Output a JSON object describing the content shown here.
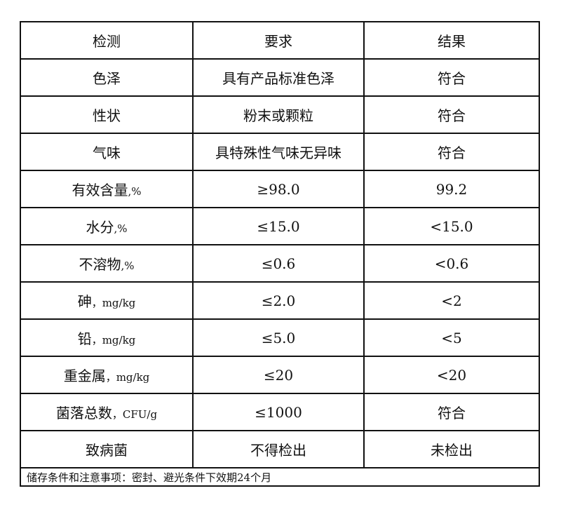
{
  "header": [
    "检测",
    "要求",
    "结果"
  ],
  "rows": [
    {
      "item": "色泽",
      "unit": "",
      "requirement": "具有产品标准色泽",
      "result": "符合"
    },
    {
      "item": "性状",
      "unit": "",
      "requirement": "粉末或颗粒",
      "result": "符合"
    },
    {
      "item": "气味",
      "unit": "",
      "requirement": "具特殊性气味无异味",
      "result": "符合"
    },
    {
      "item": "有效含量",
      "unit": ",%",
      "requirement": "≥98.0",
      "result": "99.2"
    },
    {
      "item": "水分",
      "unit": ",%",
      "requirement": "≤15.0",
      "result": "<15.0"
    },
    {
      "item": "不溶物",
      "unit": ",%",
      "requirement": "≤0.6",
      "result": "<0.6"
    },
    {
      "item": "砷",
      "unit": "，mg/kg",
      "requirement": "≤2.0",
      "result": "<2"
    },
    {
      "item": "铅",
      "unit": "，mg/kg",
      "requirement": "≤5.0",
      "result": "<5"
    },
    {
      "item": "重金属",
      "unit": "，mg/kg",
      "requirement": "≤20",
      "result": "<20"
    },
    {
      "item": "菌落总数",
      "unit": "，CFU/g",
      "requirement": "≤1000",
      "result": "符合"
    },
    {
      "item": "致病菌",
      "unit": "",
      "requirement": "不得检出",
      "result": "未检出"
    }
  ],
  "footer": "储存条件和注意事项：密封、避光条件下效期24个月"
}
